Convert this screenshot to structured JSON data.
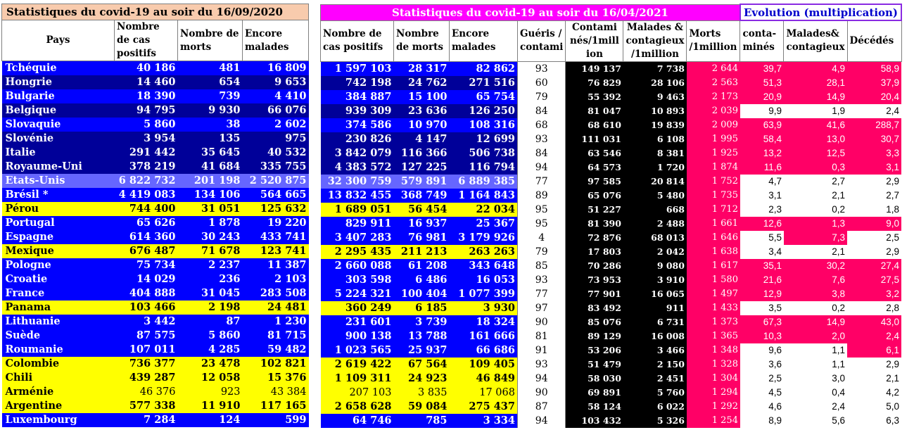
{
  "title_2020": "Statistiques du covid-19 au soir du 16/09/2020",
  "title_2021": "Statistiques du covid-19 au soir du 16/04/2021",
  "title_evo": "Evolution (multiplication)",
  "headers_2020": [
    "Pays",
    "Nombre de cas positifs",
    "Nombre de morts",
    "Encore malades"
  ],
  "headers_2021": [
    "Nombre de cas positifs",
    "Nombre de morts",
    "Encore malades",
    "Guéris / contami",
    "Contami nés/1mill ion",
    "Malades & contagieux /1million",
    "Morts /1million",
    "conta-minés",
    "Malades& contagieux",
    "Décédés"
  ],
  "rows": [
    {
      "pays": "Tchéquie",
      "s": "blue",
      "c20": "40 186",
      "m20": "481",
      "e20": "16 809",
      "c21": "1 597 103",
      "m21": "28 317",
      "e21": "82 862",
      "g": "93",
      "cpm": "149 137",
      "mpm": "7 738",
      "dpm": "2 644",
      "x1": "39,7",
      "x2": "4,9",
      "x3": "58,9",
      "w": [
        false,
        false,
        false
      ]
    },
    {
      "pays": "Hongrie",
      "s": "navy",
      "c20": "14 460",
      "m20": "654",
      "e20": "9 653",
      "c21": "742 198",
      "m21": "24 762",
      "e21": "271 516",
      "g": "60",
      "cpm": "76 829",
      "mpm": "28 106",
      "dpm": "2 563",
      "x1": "51,3",
      "x2": "28,1",
      "x3": "37,9",
      "w": [
        false,
        false,
        false
      ]
    },
    {
      "pays": "Bulgarie",
      "s": "blue",
      "c20": "18 390",
      "m20": "739",
      "e20": "4 410",
      "c21": "384 887",
      "m21": "15 100",
      "e21": "65 754",
      "g": "79",
      "cpm": "55 392",
      "mpm": "9 463",
      "dpm": "2 173",
      "x1": "20,9",
      "x2": "14,9",
      "x3": "20,4",
      "w": [
        false,
        false,
        false
      ]
    },
    {
      "pays": "Belgique",
      "s": "navy",
      "c20": "94 795",
      "m20": "9 930",
      "e20": "66 076",
      "c21": "939 309",
      "m21": "23 636",
      "e21": "126 250",
      "g": "84",
      "cpm": "81 047",
      "mpm": "10 893",
      "dpm": "2 039",
      "x1": "9,9",
      "x2": "1,9",
      "x3": "2,4",
      "w": [
        true,
        true,
        true
      ]
    },
    {
      "pays": "Slovaquie",
      "s": "blue",
      "c20": "5 860",
      "m20": "38",
      "e20": "2 602",
      "c21": "374 586",
      "m21": "10 970",
      "e21": "108 316",
      "g": "68",
      "cpm": "68 610",
      "mpm": "19 839",
      "dpm": "2 009",
      "x1": "63,9",
      "x2": "41,6",
      "x3": "288,7",
      "w": [
        false,
        false,
        false
      ]
    },
    {
      "pays": "Slovénie",
      "s": "navy",
      "c20": "3 954",
      "m20": "135",
      "e20": "975",
      "c21": "230 826",
      "m21": "4 147",
      "e21": "12 699",
      "g": "93",
      "cpm": "111 031",
      "mpm": "6 108",
      "dpm": "1 995",
      "x1": "58,4",
      "x2": "13,0",
      "x3": "30,7",
      "w": [
        false,
        false,
        false
      ]
    },
    {
      "pays": "Italie",
      "s": "navy",
      "c20": "291 442",
      "m20": "35 645",
      "e20": "40 532",
      "c21": "3 842 079",
      "m21": "116 366",
      "e21": "506 738",
      "g": "84",
      "cpm": "63 546",
      "mpm": "8 381",
      "dpm": "1 925",
      "x1": "13,2",
      "x2": "12,5",
      "x3": "3,3",
      "w": [
        false,
        false,
        false
      ]
    },
    {
      "pays": "Royaume-Uni",
      "s": "navy",
      "c20": "378 219",
      "m20": "41 684",
      "e20": "335 755",
      "c21": "4 383 572",
      "m21": "127 225",
      "e21": "116 794",
      "g": "94",
      "cpm": "64 573",
      "mpm": "1 720",
      "dpm": "1 874",
      "x1": "11,6",
      "x2": "0,3",
      "x3": "3,1",
      "w": [
        false,
        false,
        false
      ]
    },
    {
      "pays": "Etats-Unis",
      "s": "hl",
      "c20": "6 822 732",
      "m20": "201 198",
      "e20": "2 520 875",
      "c21": "32 300 759",
      "m21": "579 891",
      "e21": "6 889 385",
      "g": "77",
      "cpm": "97 585",
      "mpm": "20 814",
      "dpm": "1 752",
      "x1": "4,7",
      "x2": "2,7",
      "x3": "2,9",
      "w": [
        true,
        true,
        true
      ]
    },
    {
      "pays": "Brésil *",
      "s": "blue",
      "c20": "4 419 083",
      "m20": "134 106",
      "e20": "564 665",
      "c21": "13 832 455",
      "m21": "368 749",
      "e21": "1 164 843",
      "g": "89",
      "cpm": "65 076",
      "mpm": "5 480",
      "dpm": "1 735",
      "x1": "3,1",
      "x2": "2,1",
      "x3": "2,7",
      "w": [
        true,
        true,
        true
      ]
    },
    {
      "pays": "Pérou",
      "s": "yel",
      "c20": "744 400",
      "m20": "31 051",
      "e20": "125 632",
      "c21": "1 689 051",
      "m21": "56 454",
      "e21": "22 034",
      "g": "95",
      "cpm": "51 227",
      "mpm": "668",
      "dpm": "1 712",
      "x1": "2,3",
      "x2": "0,2",
      "x3": "1,8",
      "w": [
        true,
        true,
        true
      ]
    },
    {
      "pays": "Portugal",
      "s": "blue",
      "c20": "65 626",
      "m20": "1 878",
      "e20": "19 220",
      "c21": "829 911",
      "m21": "16 937",
      "e21": "25 367",
      "g": "95",
      "cpm": "81 390",
      "mpm": "2 488",
      "dpm": "1 661",
      "x1": "12,6",
      "x2": "1,3",
      "x3": "9,0",
      "w": [
        false,
        false,
        false
      ]
    },
    {
      "pays": "Espagne",
      "s": "blue",
      "c20": "614 360",
      "m20": "30 243",
      "e20": "433 741",
      "c21": "3 407 283",
      "m21": "76 981",
      "e21": "3 179 926",
      "g": "4",
      "cpm": "72 876",
      "mpm": "68 013",
      "dpm": "1 646",
      "x1": "5,5",
      "x2": "7,3",
      "x3": "2,5",
      "w": [
        true,
        false,
        true
      ]
    },
    {
      "pays": "Mexique",
      "s": "yel",
      "c20": "676 487",
      "m20": "71 678",
      "e20": "123 741",
      "c21": "2 295 435",
      "m21": "211 213",
      "e21": "263 263",
      "g": "79",
      "cpm": "17 803",
      "mpm": "2 042",
      "dpm": "1 638",
      "x1": "3,4",
      "x2": "2,1",
      "x3": "2,9",
      "w": [
        true,
        true,
        true
      ]
    },
    {
      "pays": "Pologne",
      "s": "blue",
      "c20": "75 734",
      "m20": "2 237",
      "e20": "11 387",
      "c21": "2 660 088",
      "m21": "61 208",
      "e21": "343 648",
      "g": "85",
      "cpm": "70 286",
      "mpm": "9 080",
      "dpm": "1 617",
      "x1": "35,1",
      "x2": "30,2",
      "x3": "27,4",
      "w": [
        false,
        false,
        false
      ]
    },
    {
      "pays": "Croatie",
      "s": "blue",
      "c20": "14 029",
      "m20": "236",
      "e20": "2 103",
      "c21": "303 598",
      "m21": "6 486",
      "e21": "16 053",
      "g": "93",
      "cpm": "73 953",
      "mpm": "3 910",
      "dpm": "1 580",
      "x1": "21,6",
      "x2": "7,6",
      "x3": "27,5",
      "w": [
        false,
        false,
        false
      ]
    },
    {
      "pays": "France",
      "s": "blue",
      "c20": "404 888",
      "m20": "31 045",
      "e20": "283 508",
      "c21": "5 224 321",
      "m21": "100 404",
      "e21": "1 077 399",
      "g": "77",
      "cpm": "77 901",
      "mpm": "16 065",
      "dpm": "1 497",
      "x1": "12,9",
      "x2": "3,8",
      "x3": "3,2",
      "w": [
        false,
        false,
        false
      ]
    },
    {
      "pays": "Panama",
      "s": "yel",
      "c20": "103 466",
      "m20": "2 198",
      "e20": "24 481",
      "c21": "360 249",
      "m21": "6 185",
      "e21": "3 930",
      "g": "97",
      "cpm": "83 492",
      "mpm": "911",
      "dpm": "1 433",
      "x1": "3,5",
      "x2": "0,2",
      "x3": "2,8",
      "w": [
        true,
        true,
        true
      ]
    },
    {
      "pays": "Lithuanie",
      "s": "blue",
      "c20": "3 442",
      "m20": "87",
      "e20": "1 230",
      "c21": "231 601",
      "m21": "3 739",
      "e21": "18 324",
      "g": "90",
      "cpm": "85 076",
      "mpm": "6 731",
      "dpm": "1 373",
      "x1": "67,3",
      "x2": "14,9",
      "x3": "43,0",
      "w": [
        false,
        false,
        false
      ]
    },
    {
      "pays": "Suède",
      "s": "blue",
      "c20": "87 575",
      "m20": "5 860",
      "e20": "81 715",
      "c21": "900 138",
      "m21": "13 788",
      "e21": "161 666",
      "g": "81",
      "cpm": "89 129",
      "mpm": "16 008",
      "dpm": "1 365",
      "x1": "10,3",
      "x2": "2,0",
      "x3": "2,4",
      "w": [
        false,
        false,
        false
      ]
    },
    {
      "pays": "Roumanie",
      "s": "blue",
      "c20": "107 011",
      "m20": "4 285",
      "e20": "59 482",
      "c21": "1 023 565",
      "m21": "25 937",
      "e21": "66 686",
      "g": "91",
      "cpm": "53 206",
      "mpm": "3 466",
      "dpm": "1 348",
      "x1": "9,6",
      "x2": "1,1",
      "x3": "6,1",
      "w": [
        true,
        true,
        false
      ]
    },
    {
      "pays": "Colombie",
      "s": "yel",
      "c20": "736 377",
      "m20": "23 478",
      "e20": "102 821",
      "c21": "2 619 422",
      "m21": "67 564",
      "e21": "109 405",
      "g": "93",
      "cpm": "51 479",
      "mpm": "2 150",
      "dpm": "1 328",
      "x1": "3,6",
      "x2": "1,1",
      "x3": "2,9",
      "w": [
        true,
        true,
        true
      ]
    },
    {
      "pays": "Chili",
      "s": "yel",
      "c20": "439 287",
      "m20": "12 058",
      "e20": "15 376",
      "c21": "1 109 311",
      "m21": "24 923",
      "e21": "46 849",
      "g": "94",
      "cpm": "58 030",
      "mpm": "2 451",
      "dpm": "1 304",
      "x1": "2,5",
      "x2": "3,0",
      "x3": "2,1",
      "w": [
        true,
        true,
        true
      ]
    },
    {
      "pays": "Arménie",
      "s": "yel",
      "light": true,
      "c20": "46 376",
      "m20": "923",
      "e20": "43 384",
      "c21": "207 103",
      "m21": "3 835",
      "e21": "17 068",
      "g": "90",
      "cpm": "69 891",
      "mpm": "5 760",
      "dpm": "1 294",
      "x1": "4,5",
      "x2": "0,4",
      "x3": "4,2",
      "w": [
        true,
        true,
        true
      ]
    },
    {
      "pays": "Argentine",
      "s": "yel",
      "c20": "577 338",
      "m20": "11 910",
      "e20": "117 165",
      "c21": "2 658 628",
      "m21": "59 084",
      "e21": "275 437",
      "g": "87",
      "cpm": "58 124",
      "mpm": "6 022",
      "dpm": "1 292",
      "x1": "4,6",
      "x2": "2,4",
      "x3": "5,0",
      "w": [
        true,
        true,
        true
      ]
    },
    {
      "pays": "Luxembourg",
      "s": "blue",
      "c20": "7 284",
      "m20": "124",
      "e20": "599",
      "c21": "64 746",
      "m21": "785",
      "e21": "3 334",
      "g": "94",
      "cpm": "103 432",
      "mpm": "5 326",
      "dpm": "1 254",
      "x1": "8,9",
      "x2": "5,6",
      "x3": "6,3",
      "w": [
        true,
        true,
        true
      ]
    }
  ],
  "colors": {
    "blue": "#0000ff",
    "navy": "#000099",
    "yellow": "#ffff00",
    "pink": "#ff0066",
    "magenta": "#ff00ff",
    "salmon": "#f8cbad"
  }
}
